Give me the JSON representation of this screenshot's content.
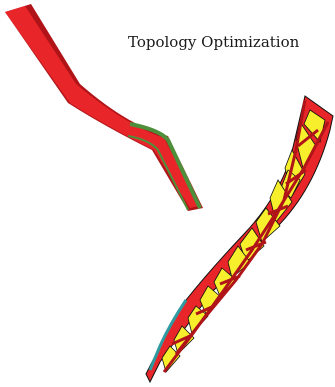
{
  "caption": "Topology Optimization",
  "colors": {
    "solid_red": "#e8262a",
    "dark_red": "#b01418",
    "yellow_fill": "#f7ef2c",
    "green_edge": "#4d8f3a",
    "teal_edge": "#2f9aa0",
    "outline": "#111111"
  }
}
